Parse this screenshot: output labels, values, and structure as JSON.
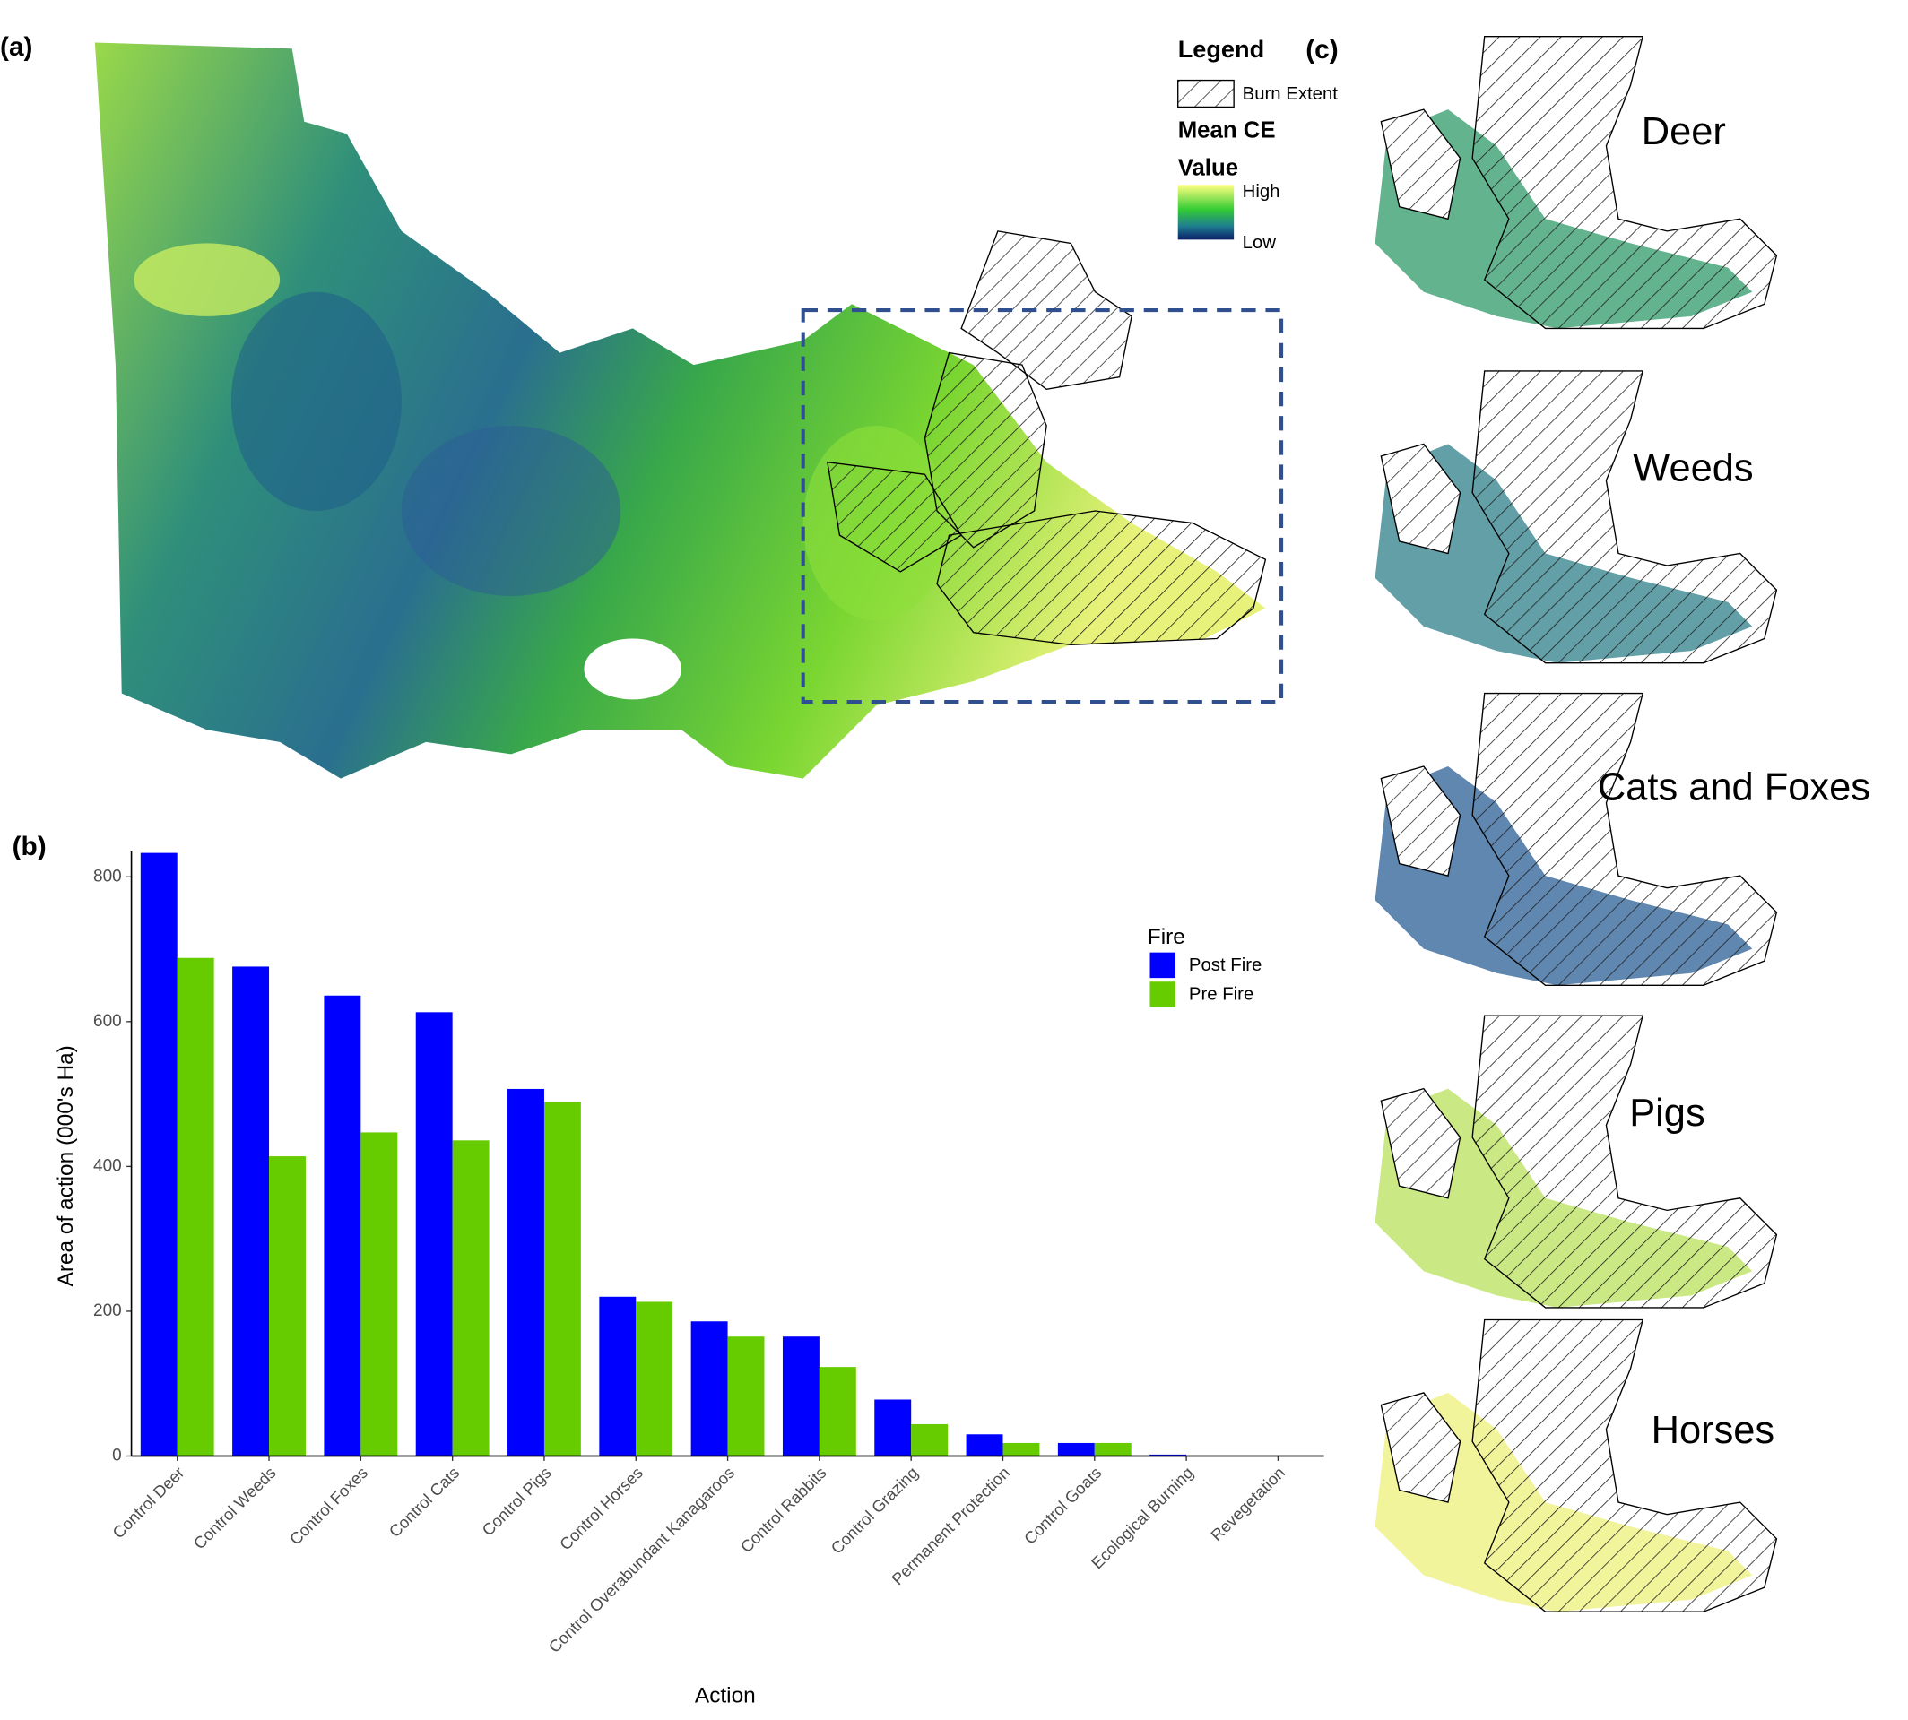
{
  "panel_labels": [
    "(a)",
    "(b)",
    "(c)"
  ],
  "map_legend": {
    "title": "Legend",
    "burn": "Burn Extent",
    "value_title_1": "Mean CE",
    "value_title_2": "Value",
    "high": "High",
    "low": "Low"
  },
  "species_maps": [
    "Deer",
    "Weeds",
    "Cats and Foxes",
    "Pigs",
    "Horses"
  ],
  "chart_data": {
    "type": "bar",
    "categories": [
      "Control Deer",
      "Control Weeds",
      "Control Foxes",
      "Control Cats",
      "Control Pigs",
      "Control Horses",
      "Control Overabundant Kanagaroos",
      "Control Rabbits",
      "Control Grazing",
      "Permanent Protection",
      "Control Goats",
      "Ecological Burning",
      "Revegetation"
    ],
    "series": [
      {
        "name": "Post Fire",
        "color": "#0000ff",
        "values": [
          833,
          676,
          636,
          613,
          507,
          220,
          186,
          165,
          78,
          30,
          18,
          2,
          0
        ]
      },
      {
        "name": "Pre Fire",
        "color": "#66cc00",
        "values": [
          688,
          414,
          447,
          436,
          489,
          213,
          165,
          123,
          44,
          18,
          18,
          0,
          0
        ]
      }
    ],
    "ylim": [
      0,
      835
    ],
    "yticks": [
      0,
      200,
      400,
      600,
      800
    ],
    "y_label": "Area of action (000's Ha)",
    "x_label": "Action",
    "legend_title": "Fire"
  }
}
